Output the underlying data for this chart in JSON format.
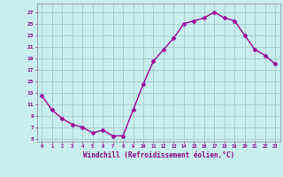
{
  "x": [
    0,
    1,
    2,
    3,
    4,
    5,
    6,
    7,
    8,
    9,
    10,
    11,
    12,
    13,
    14,
    15,
    16,
    17,
    18,
    19,
    20,
    21,
    22,
    23
  ],
  "y": [
    12.5,
    10.0,
    8.5,
    7.5,
    7.0,
    6.0,
    6.5,
    5.5,
    5.5,
    10.0,
    14.5,
    18.5,
    20.5,
    22.5,
    25.0,
    25.5,
    26.0,
    27.0,
    26.0,
    25.5,
    23.0,
    20.5,
    19.5,
    18.0
  ],
  "line_color": "#990099",
  "marker": "D",
  "marker_size": 2,
  "bg_color": "#c8eef0",
  "grid_color": "#aacccc",
  "xlabel": "Windchill (Refroidissement éolien,°C)",
  "xlabel_color": "#880088",
  "tick_color": "#880088",
  "ytick_labels": [
    "5",
    "7",
    "9",
    "11",
    "13",
    "15",
    "17",
    "19",
    "21",
    "23",
    "25",
    "27"
  ],
  "ytick_vals": [
    5,
    7,
    9,
    11,
    13,
    15,
    17,
    19,
    21,
    23,
    25,
    27
  ],
  "xtick_vals": [
    0,
    1,
    2,
    3,
    4,
    5,
    6,
    7,
    8,
    9,
    10,
    11,
    12,
    13,
    14,
    15,
    16,
    17,
    18,
    19,
    20,
    21,
    22,
    23
  ],
  "xtick_labels": [
    "0",
    "1",
    "2",
    "3",
    "4",
    "5",
    "6",
    "7",
    "8",
    "9",
    "10",
    "11",
    "12",
    "13",
    "14",
    "15",
    "16",
    "17",
    "18",
    "19",
    "20",
    "21",
    "22",
    "23"
  ],
  "ylim": [
    4.5,
    28.5
  ],
  "xlim": [
    -0.5,
    23.5
  ]
}
